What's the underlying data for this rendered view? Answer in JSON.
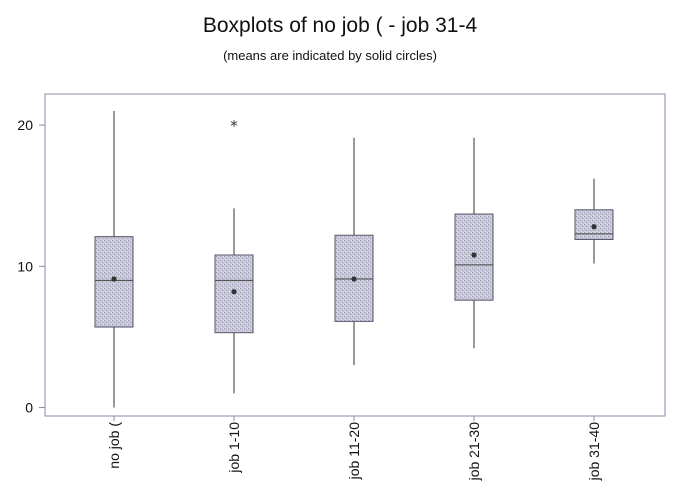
{
  "chart_data": {
    "type": "boxplot",
    "title": "Boxplots of no job ( - job 31-4",
    "subtitle": "(means are indicated by solid circles)",
    "xlabel": "",
    "ylabel": "",
    "ylim": [
      -0.6,
      22.2
    ],
    "yticks": [
      0,
      10,
      20
    ],
    "categories": [
      "no job (",
      "job 1-10",
      "job 11-20",
      "job 21-30",
      "job 31-40"
    ],
    "boxes": [
      {
        "min": 0,
        "q1": 5.7,
        "median": 9.0,
        "q3": 12.1,
        "max": 21.0,
        "mean": 9.1,
        "outliers": []
      },
      {
        "min": 1,
        "q1": 5.3,
        "median": 9.0,
        "q3": 10.8,
        "max": 14.1,
        "mean": 8.2,
        "outliers": [
          20.0
        ]
      },
      {
        "min": 3,
        "q1": 6.1,
        "median": 9.1,
        "q3": 12.2,
        "max": 19.1,
        "mean": 9.1,
        "outliers": []
      },
      {
        "min": 4.2,
        "q1": 7.6,
        "median": 10.1,
        "q3": 13.7,
        "max": 19.1,
        "mean": 10.8,
        "outliers": []
      },
      {
        "min": 10.2,
        "q1": 11.9,
        "median": 12.3,
        "q3": 14.0,
        "max": 16.2,
        "mean": 12.8,
        "outliers": []
      }
    ],
    "colors": {
      "box_fill": "#c8c8d8",
      "box_stroke": "#55556a",
      "line": "#333333",
      "axis": "#8a8aaa"
    }
  }
}
